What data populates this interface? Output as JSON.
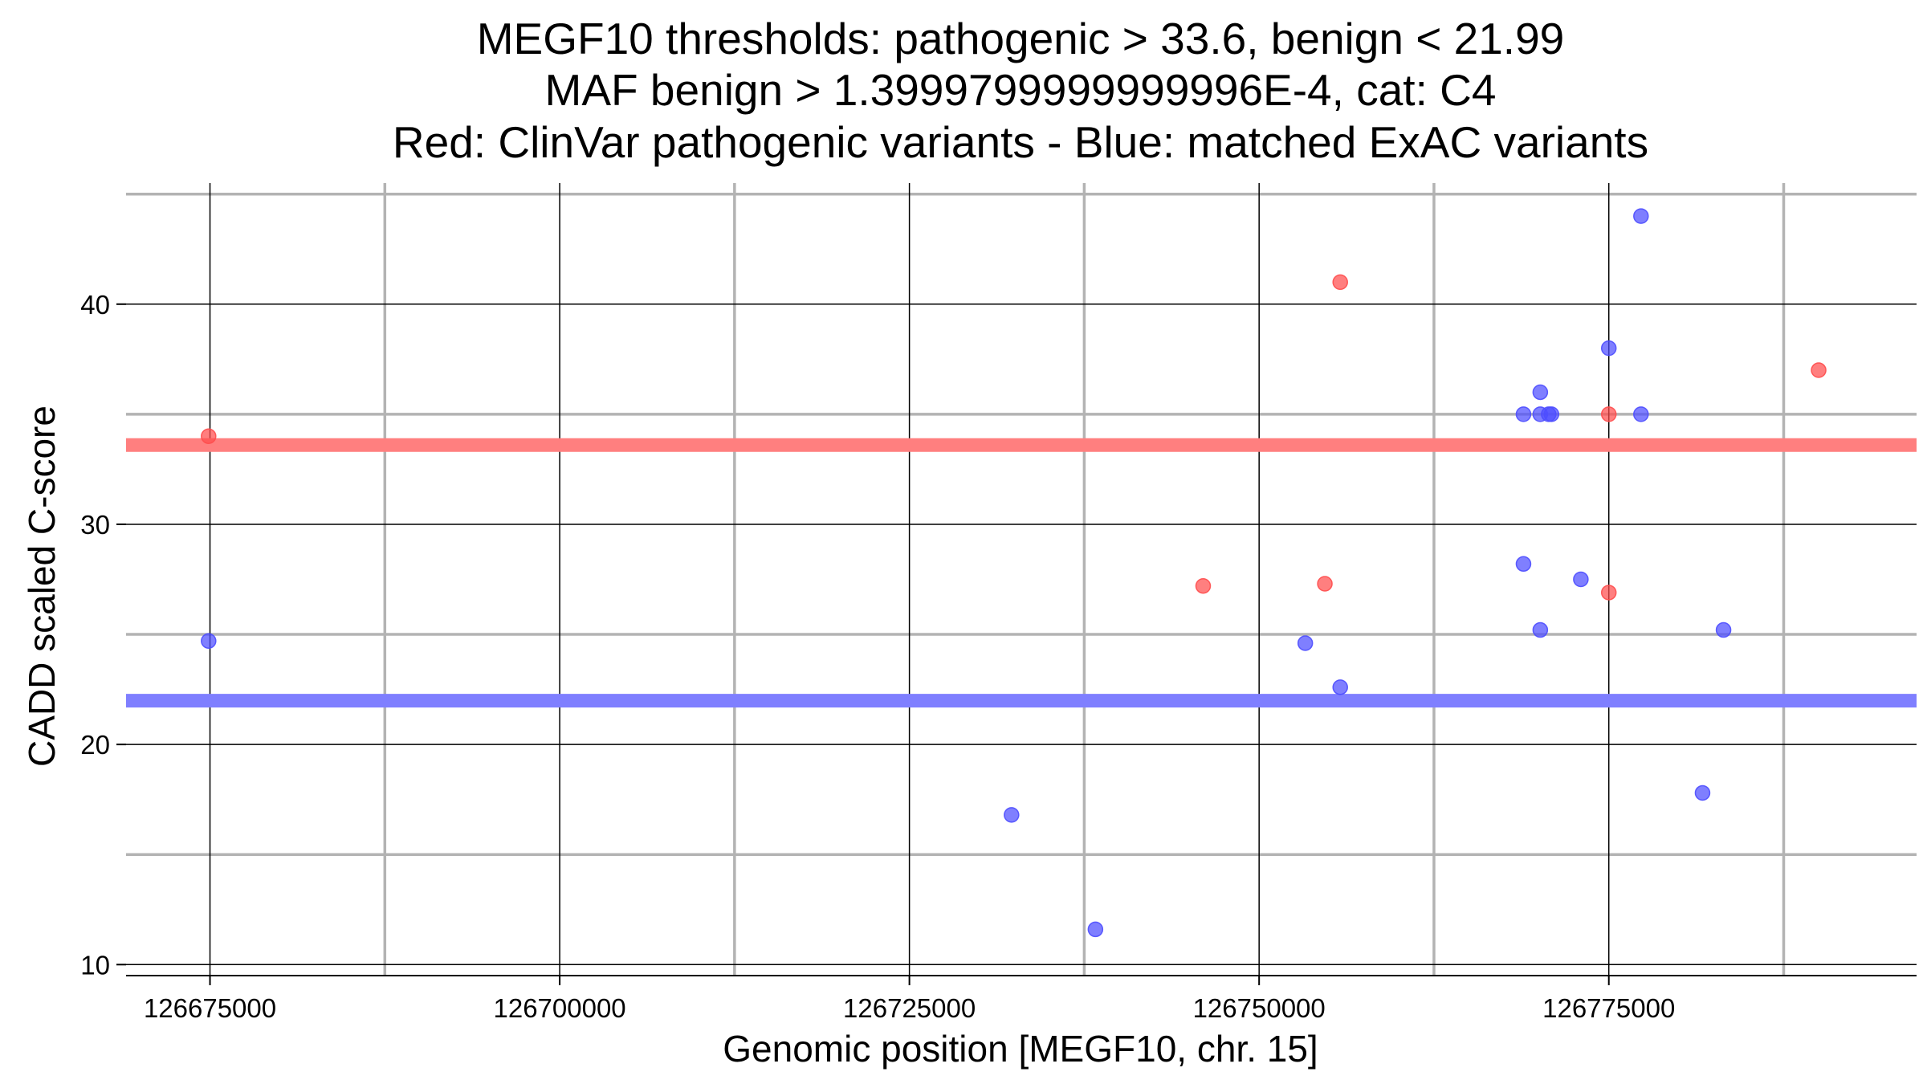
{
  "chart_data": {
    "type": "scatter",
    "title": [
      "MEGF10 thresholds: pathogenic > 33.6, benign < 21.99",
      "MAF benign > 1.3999799999999996E-4, cat: C4",
      "Red: ClinVar pathogenic variants - Blue: matched ExAC variants"
    ],
    "xlabel": "Genomic position [MEGF10, chr. 15]",
    "ylabel": "CADD scaled C-score",
    "xlim": [
      126669000,
      126797000
    ],
    "ylim": [
      9.5,
      45.5
    ],
    "x_ticks": [
      126675000,
      126700000,
      126725000,
      126750000,
      126775000
    ],
    "x_tick_labels": [
      "126675000",
      "126700000",
      "126725000",
      "126750000",
      "126775000"
    ],
    "y_ticks": [
      10,
      20,
      30,
      40
    ],
    "y_tick_labels": [
      "10",
      "20",
      "30",
      "40"
    ],
    "x_minor_grid": [
      126687500,
      126712500,
      126737500,
      126762500,
      126787500
    ],
    "y_minor_grid": [
      15,
      25,
      35,
      45
    ],
    "grid": true,
    "thresholds": [
      {
        "name": "pathogenic",
        "value": 33.6,
        "color": "#ff7f7f"
      },
      {
        "name": "benign",
        "value": 21.99,
        "color": "#7f7fff"
      }
    ],
    "series": [
      {
        "color": "#ff4d4d",
        "points": [
          {
            "x": 126674900,
            "y": 34.0
          },
          {
            "x": 126746000,
            "y": 27.2
          },
          {
            "x": 126754700,
            "y": 27.3
          },
          {
            "x": 126755800,
            "y": 41.0
          },
          {
            "x": 126775000,
            "y": 35.0
          },
          {
            "x": 126775000,
            "y": 26.9
          },
          {
            "x": 126790000,
            "y": 37.0
          }
        ]
      },
      {
        "color": "#4d4dff",
        "points": [
          {
            "x": 126674900,
            "y": 24.7
          },
          {
            "x": 126732300,
            "y": 16.8
          },
          {
            "x": 126738300,
            "y": 11.6
          },
          {
            "x": 126753300,
            "y": 24.6
          },
          {
            "x": 126755800,
            "y": 22.6
          },
          {
            "x": 126768900,
            "y": 35.0
          },
          {
            "x": 126768900,
            "y": 28.2
          },
          {
            "x": 126770100,
            "y": 36.0
          },
          {
            "x": 126770100,
            "y": 35.0
          },
          {
            "x": 126770100,
            "y": 25.2
          },
          {
            "x": 126770700,
            "y": 35.0
          },
          {
            "x": 126770900,
            "y": 35.0
          },
          {
            "x": 126773000,
            "y": 27.5
          },
          {
            "x": 126775000,
            "y": 38.0
          },
          {
            "x": 126777300,
            "y": 44.0
          },
          {
            "x": 126777300,
            "y": 35.0
          },
          {
            "x": 126781700,
            "y": 17.8
          },
          {
            "x": 126783200,
            "y": 25.2
          }
        ]
      }
    ]
  }
}
